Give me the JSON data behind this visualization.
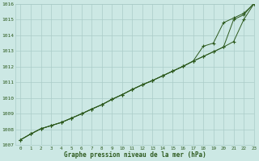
{
  "xlabel": "Graphe pression niveau de la mer (hPa)",
  "xlim": [
    -0.5,
    23
  ],
  "ylim": [
    1007,
    1016
  ],
  "xticks": [
    0,
    1,
    2,
    3,
    4,
    5,
    6,
    7,
    8,
    9,
    10,
    11,
    12,
    13,
    14,
    15,
    16,
    17,
    18,
    19,
    20,
    21,
    22,
    23
  ],
  "yticks": [
    1007,
    1008,
    1009,
    1010,
    1011,
    1012,
    1013,
    1014,
    1015,
    1016
  ],
  "bg_color": "#cce8e4",
  "grid_color": "#aaccc8",
  "line_color": "#2d5a1e",
  "line1": [
    1007.35,
    1007.72,
    1008.05,
    1008.25,
    1008.45,
    1008.72,
    1009.0,
    1009.3,
    1009.58,
    1009.92,
    1010.22,
    1010.55,
    1010.85,
    1011.12,
    1011.42,
    1011.72,
    1012.02,
    1012.35,
    1012.65,
    1012.95,
    1013.25,
    1013.6,
    1015.0,
    1016.0
  ],
  "line2": [
    1007.35,
    1007.72,
    1008.05,
    1008.25,
    1008.45,
    1008.72,
    1009.0,
    1009.3,
    1009.58,
    1009.92,
    1010.22,
    1010.55,
    1010.85,
    1011.12,
    1011.42,
    1011.72,
    1012.02,
    1012.35,
    1013.3,
    1013.5,
    1014.8,
    1015.1,
    1015.4,
    1016.0
  ],
  "line3": [
    1007.35,
    1007.72,
    1008.05,
    1008.25,
    1008.45,
    1008.72,
    1009.0,
    1009.3,
    1009.58,
    1009.92,
    1010.22,
    1010.55,
    1010.85,
    1011.12,
    1011.42,
    1011.72,
    1012.02,
    1012.35,
    1012.65,
    1012.95,
    1013.25,
    1015.0,
    1015.3,
    1016.05
  ]
}
